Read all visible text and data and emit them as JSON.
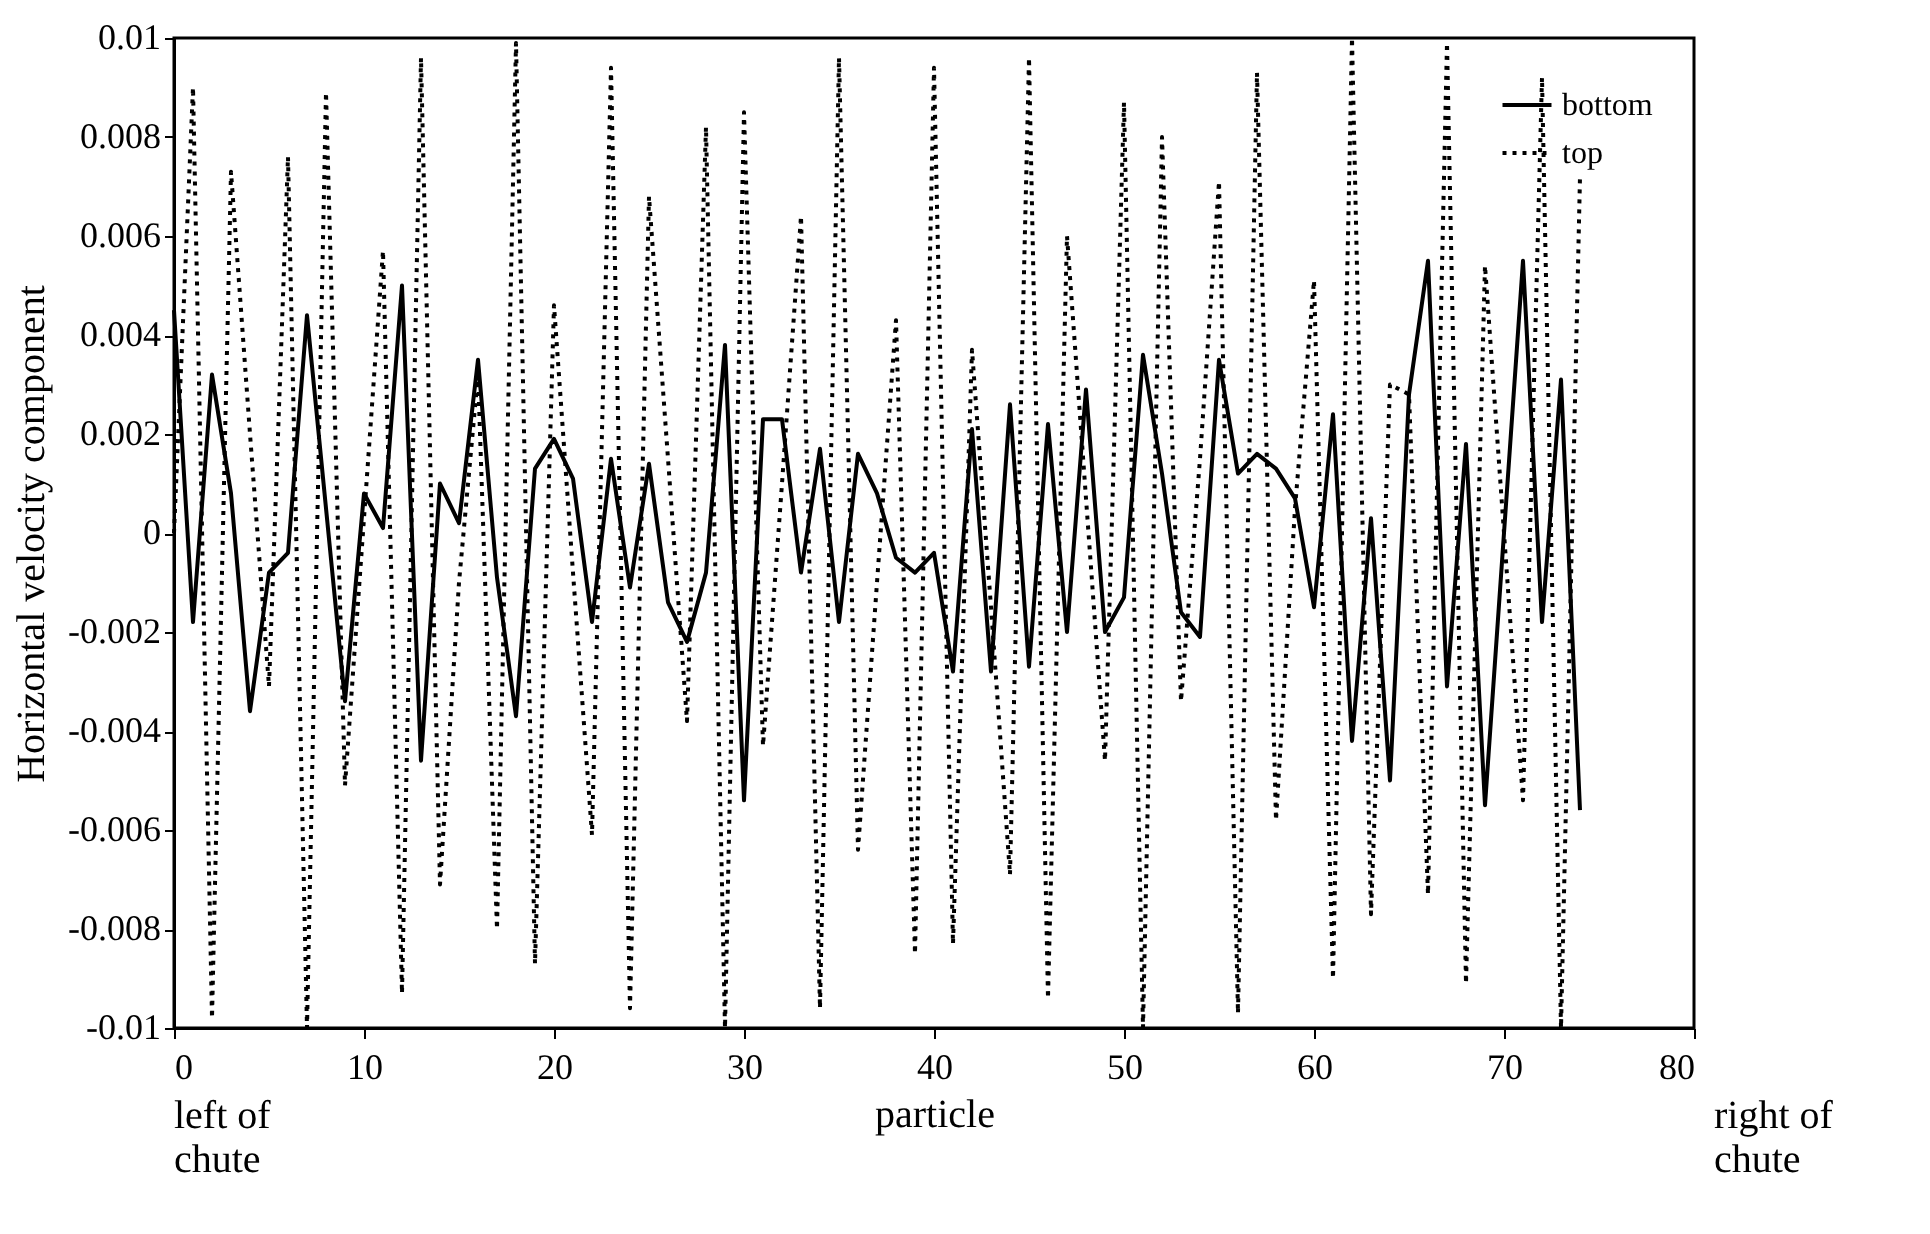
{
  "chart_data": {
    "type": "line",
    "xlabel": "particle",
    "ylabel": "Horizontal velocity component",
    "annotations": [
      "left of\nchute",
      "right of\nchute"
    ],
    "x": [
      0,
      1,
      2,
      3,
      4,
      5,
      6,
      7,
      8,
      9,
      10,
      11,
      12,
      13,
      14,
      15,
      16,
      17,
      18,
      19,
      20,
      21,
      22,
      23,
      24,
      25,
      26,
      27,
      28,
      29,
      30,
      31,
      32,
      33,
      34,
      35,
      36,
      37,
      38,
      39,
      40,
      41,
      42,
      43,
      44,
      45,
      46,
      47,
      48,
      49,
      50,
      51,
      52,
      53,
      54,
      55,
      56,
      57,
      58,
      59,
      60,
      61,
      62,
      63,
      64,
      65,
      66,
      67,
      68,
      69,
      70,
      71,
      72,
      73,
      74
    ],
    "series": [
      {
        "name": "bottom",
        "color": "#000000",
        "line_style": "solid",
        "values": [
          0.0045,
          -0.0018,
          0.0032,
          0.0008,
          -0.0036,
          -0.0008,
          -0.0004,
          0.0044,
          0.0005,
          -0.0034,
          0.0008,
          0.0001,
          0.005,
          -0.0046,
          0.001,
          0.0002,
          0.0035,
          -0.0009,
          -0.0037,
          0.0013,
          0.0019,
          0.0011,
          -0.0018,
          0.0015,
          -0.0011,
          0.0014,
          -0.0014,
          -0.0022,
          -0.0008,
          0.0038,
          -0.0054,
          0.0023,
          0.0023,
          -0.0008,
          0.0017,
          -0.0018,
          0.0016,
          0.0008,
          -0.0005,
          -0.0008,
          -0.0004,
          -0.0028,
          0.0021,
          -0.0028,
          0.0026,
          -0.0027,
          0.0022,
          -0.002,
          0.0029,
          -0.002,
          -0.0013,
          0.0036,
          0.0012,
          -0.0016,
          -0.0021,
          0.0035,
          0.0012,
          0.0016,
          0.0013,
          0.0007,
          -0.0015,
          0.0024,
          -0.0042,
          0.0003,
          -0.005,
          0.0028,
          0.0055,
          -0.0031,
          0.0018,
          -0.0055,
          0.0,
          0.0055,
          -0.0018,
          0.0031,
          -0.0056
        ]
      },
      {
        "name": "top",
        "color": "#000000",
        "line_style": "dotted",
        "values": [
          0.0,
          0.009,
          -0.0098,
          0.0073,
          0.002,
          -0.0031,
          0.0076,
          -0.01,
          0.0089,
          -0.0051,
          0.0003,
          0.0057,
          -0.0093,
          0.0096,
          -0.0071,
          -0.001,
          0.0032,
          -0.008,
          0.0099,
          -0.0087,
          0.0046,
          -0.0008,
          -0.0061,
          0.0094,
          -0.0096,
          0.0068,
          0.0015,
          -0.0038,
          0.0082,
          -0.01,
          0.0085,
          -0.0043,
          0.001,
          0.0064,
          -0.0096,
          0.0096,
          -0.0064,
          -0.001,
          0.0043,
          -0.0085,
          0.0094,
          -0.0083,
          0.0037,
          -0.0015,
          -0.0069,
          0.0096,
          -0.0094,
          0.006,
          0.0007,
          -0.0046,
          0.0087,
          -0.01,
          0.008,
          -0.0034,
          0.0015,
          0.0071,
          -0.0097,
          0.0093,
          -0.0058,
          0.0005,
          0.0051,
          -0.009,
          0.01,
          -0.0077,
          0.003,
          0.0028,
          -0.0073,
          0.0099,
          -0.0091,
          0.0054,
          0.0,
          -0.0054,
          0.0092,
          -0.01,
          0.0072
        ]
      }
    ],
    "xlim": [
      0,
      80
    ],
    "xticks": [
      0,
      10,
      20,
      30,
      40,
      50,
      60,
      70,
      80
    ],
    "ylim": [
      -0.01,
      0.01
    ],
    "yticks": [
      {
        "value": -0.01,
        "label": "-0.01"
      },
      {
        "value": -0.008,
        "label": "-0.008"
      },
      {
        "value": -0.006,
        "label": "-0.006"
      },
      {
        "value": -0.004,
        "label": "-0.004"
      },
      {
        "value": -0.002,
        "label": "-0.002"
      },
      {
        "value": 0,
        "label": "0"
      },
      {
        "value": 0.002,
        "label": "0.002"
      },
      {
        "value": 0.004,
        "label": "0.004"
      },
      {
        "value": 0.006,
        "label": "0.006"
      },
      {
        "value": 0.008,
        "label": "0.008"
      },
      {
        "value": 0.01,
        "label": "0.01"
      }
    ],
    "grid": false,
    "legend": "top right",
    "marker": "none"
  }
}
